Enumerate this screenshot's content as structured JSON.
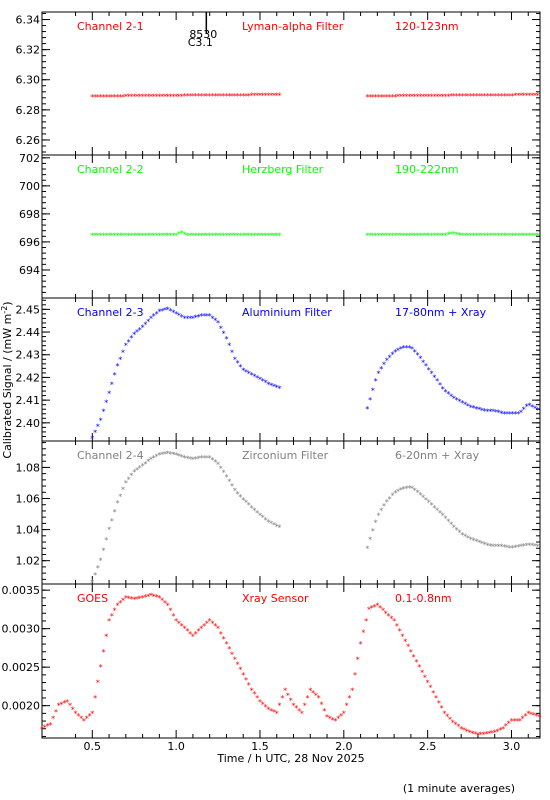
{
  "figure": {
    "xlabel": "Time / h UTC, 28 Nov 2025",
    "ylabel": "Calibrated Signal / (mW m",
    "ylabel_sup": "-2",
    "ylabel_close": ")",
    "footnote": "(1 minute averages)",
    "flare_marker": {
      "x": 1.18,
      "label_top": "8530",
      "label_bottom": "C3.1"
    }
  },
  "chart_data": [
    {
      "type": "scatter",
      "channel": "Channel 2-1",
      "filter": "Lyman-alpha Filter",
      "band": "120-123nm",
      "color": "#ff0000",
      "xlim": [
        0.2,
        3.17
      ],
      "ylim": [
        6.25,
        6.345
      ],
      "yticks": [
        6.26,
        6.28,
        6.3,
        6.32,
        6.34
      ],
      "ytick_labels": [
        "6.26",
        "6.28",
        "6.30",
        "6.32",
        "6.34"
      ],
      "segments": [
        {
          "x": [
            0.5,
            1.0,
            1.62
          ],
          "y": [
            6.2885,
            6.289,
            6.2895
          ]
        },
        {
          "x": [
            2.14,
            2.6,
            3.17
          ],
          "y": [
            6.2885,
            6.289,
            6.2895
          ]
        }
      ]
    },
    {
      "type": "scatter",
      "channel": "Channel 2-2",
      "filter": "Herzberg Filter",
      "band": "190-222nm",
      "color": "#00ff00",
      "xlim": [
        0.2,
        3.17
      ],
      "ylim": [
        692.0,
        702.2
      ],
      "yticks": [
        694,
        696,
        698,
        700,
        702
      ],
      "ytick_labels": [
        "694",
        "696",
        "698",
        "700",
        "702"
      ],
      "segments": [
        {
          "x": [
            0.5,
            1.0,
            1.03,
            1.06,
            1.62
          ],
          "y": [
            696.45,
            696.45,
            696.65,
            696.45,
            696.45
          ]
        },
        {
          "x": [
            2.14,
            2.6,
            2.65,
            2.7,
            3.17
          ],
          "y": [
            696.45,
            696.45,
            696.6,
            696.45,
            696.45
          ]
        }
      ]
    },
    {
      "type": "scatter",
      "channel": "Channel 2-3",
      "filter": "Aluminium Filter",
      "band": "17-80nm + Xray",
      "color": "#0000ff",
      "xlim": [
        0.2,
        3.17
      ],
      "ylim": [
        2.392,
        2.455
      ],
      "yticks": [
        2.4,
        2.41,
        2.42,
        2.43,
        2.44,
        2.45
      ],
      "ytick_labels": [
        "2.40",
        "2.41",
        "2.42",
        "2.43",
        "2.44",
        "2.45"
      ],
      "segments": [
        {
          "x": [
            0.5,
            0.55,
            0.6,
            0.65,
            0.7,
            0.75,
            0.8,
            0.85,
            0.9,
            0.95,
            1.0,
            1.05,
            1.1,
            1.15,
            1.2,
            1.25,
            1.3,
            1.35,
            1.4,
            1.45,
            1.5,
            1.55,
            1.62
          ],
          "y": [
            2.393,
            2.401,
            2.413,
            2.425,
            2.434,
            2.439,
            2.442,
            2.446,
            2.449,
            2.45,
            2.448,
            2.446,
            2.446,
            2.447,
            2.447,
            2.444,
            2.437,
            2.428,
            2.423,
            2.421,
            2.419,
            2.417,
            2.415
          ]
        },
        {
          "x": [
            2.14,
            2.2,
            2.25,
            2.3,
            2.35,
            2.4,
            2.45,
            2.5,
            2.55,
            2.6,
            2.65,
            2.7,
            2.75,
            2.8,
            2.85,
            2.9,
            2.95,
            3.0,
            3.05,
            3.1,
            3.17
          ],
          "y": [
            2.406,
            2.421,
            2.427,
            2.431,
            2.433,
            2.433,
            2.429,
            2.424,
            2.419,
            2.414,
            2.411,
            2.409,
            2.407,
            2.406,
            2.405,
            2.405,
            2.404,
            2.404,
            2.404,
            2.408,
            2.405
          ]
        }
      ]
    },
    {
      "type": "scatter",
      "channel": "Channel 2-4",
      "filter": "Zirconium Filter",
      "band": "6-20nm + Xray",
      "color": "#808080",
      "xlim": [
        0.2,
        3.17
      ],
      "ylim": [
        1.005,
        1.097
      ],
      "yticks": [
        1.02,
        1.04,
        1.06,
        1.08
      ],
      "ytick_labels": [
        "1.02",
        "1.04",
        "1.06",
        "1.08"
      ],
      "segments": [
        {
          "x": [
            0.5,
            0.55,
            0.6,
            0.65,
            0.7,
            0.75,
            0.8,
            0.85,
            0.9,
            0.95,
            1.0,
            1.05,
            1.1,
            1.15,
            1.2,
            1.25,
            1.3,
            1.35,
            1.4,
            1.45,
            1.5,
            1.55,
            1.62
          ],
          "y": [
            1.006,
            1.02,
            1.04,
            1.057,
            1.07,
            1.077,
            1.081,
            1.085,
            1.088,
            1.089,
            1.088,
            1.086,
            1.085,
            1.086,
            1.086,
            1.082,
            1.074,
            1.065,
            1.059,
            1.054,
            1.049,
            1.045,
            1.041
          ]
        },
        {
          "x": [
            2.14,
            2.2,
            2.25,
            2.3,
            2.35,
            2.4,
            2.45,
            2.5,
            2.55,
            2.6,
            2.65,
            2.7,
            2.75,
            2.8,
            2.85,
            2.9,
            2.95,
            3.0,
            3.05,
            3.1,
            3.17
          ],
          "y": [
            1.028,
            1.048,
            1.057,
            1.063,
            1.066,
            1.067,
            1.063,
            1.058,
            1.053,
            1.048,
            1.042,
            1.037,
            1.034,
            1.032,
            1.03,
            1.029,
            1.029,
            1.028,
            1.029,
            1.03,
            1.029
          ]
        }
      ]
    },
    {
      "type": "scatter",
      "channel": "GOES",
      "filter": "Xray Sensor",
      "band": "0.1-0.8nm",
      "color": "#ff0000",
      "xlim": [
        0.2,
        3.17
      ],
      "ylim": [
        0.00158,
        0.00358
      ],
      "yticks": [
        0.002,
        0.0025,
        0.003,
        0.0035
      ],
      "ytick_labels": [
        "0.0020",
        "0.0025",
        "0.0030",
        "0.0035"
      ],
      "segments": [
        {
          "x": [
            0.2,
            0.25,
            0.3,
            0.35,
            0.4,
            0.45,
            0.5,
            0.55,
            0.6,
            0.65,
            0.7,
            0.75,
            0.8,
            0.85,
            0.9,
            0.95,
            1.0,
            1.05,
            1.1,
            1.15,
            1.2,
            1.25,
            1.3,
            1.35,
            1.4,
            1.45,
            1.5,
            1.55,
            1.6,
            1.65,
            1.7,
            1.75,
            1.8,
            1.85,
            1.9,
            1.95,
            2.0,
            2.05,
            2.1,
            2.15,
            2.2,
            2.25,
            2.3,
            2.35,
            2.4,
            2.45,
            2.5,
            2.55,
            2.6,
            2.65,
            2.7,
            2.75,
            2.8,
            2.85,
            2.9,
            2.95,
            3.0,
            3.05,
            3.1,
            3.17
          ],
          "y": [
            0.0017,
            0.00175,
            0.002,
            0.00205,
            0.0019,
            0.0018,
            0.0019,
            0.0025,
            0.0031,
            0.0033,
            0.0034,
            0.00338,
            0.0034,
            0.00343,
            0.0034,
            0.0033,
            0.0031,
            0.003,
            0.0029,
            0.003,
            0.0031,
            0.003,
            0.0028,
            0.0026,
            0.0024,
            0.0022,
            0.00205,
            0.00195,
            0.0019,
            0.0022,
            0.002,
            0.0019,
            0.0022,
            0.0021,
            0.00185,
            0.0018,
            0.0019,
            0.0022,
            0.0028,
            0.00325,
            0.0033,
            0.0032,
            0.0031,
            0.0029,
            0.0027,
            0.0025,
            0.0023,
            0.0021,
            0.0019,
            0.00178,
            0.0017,
            0.00165,
            0.00162,
            0.00163,
            0.00165,
            0.0017,
            0.0018,
            0.0018,
            0.0019,
            0.00185
          ]
        }
      ]
    }
  ]
}
